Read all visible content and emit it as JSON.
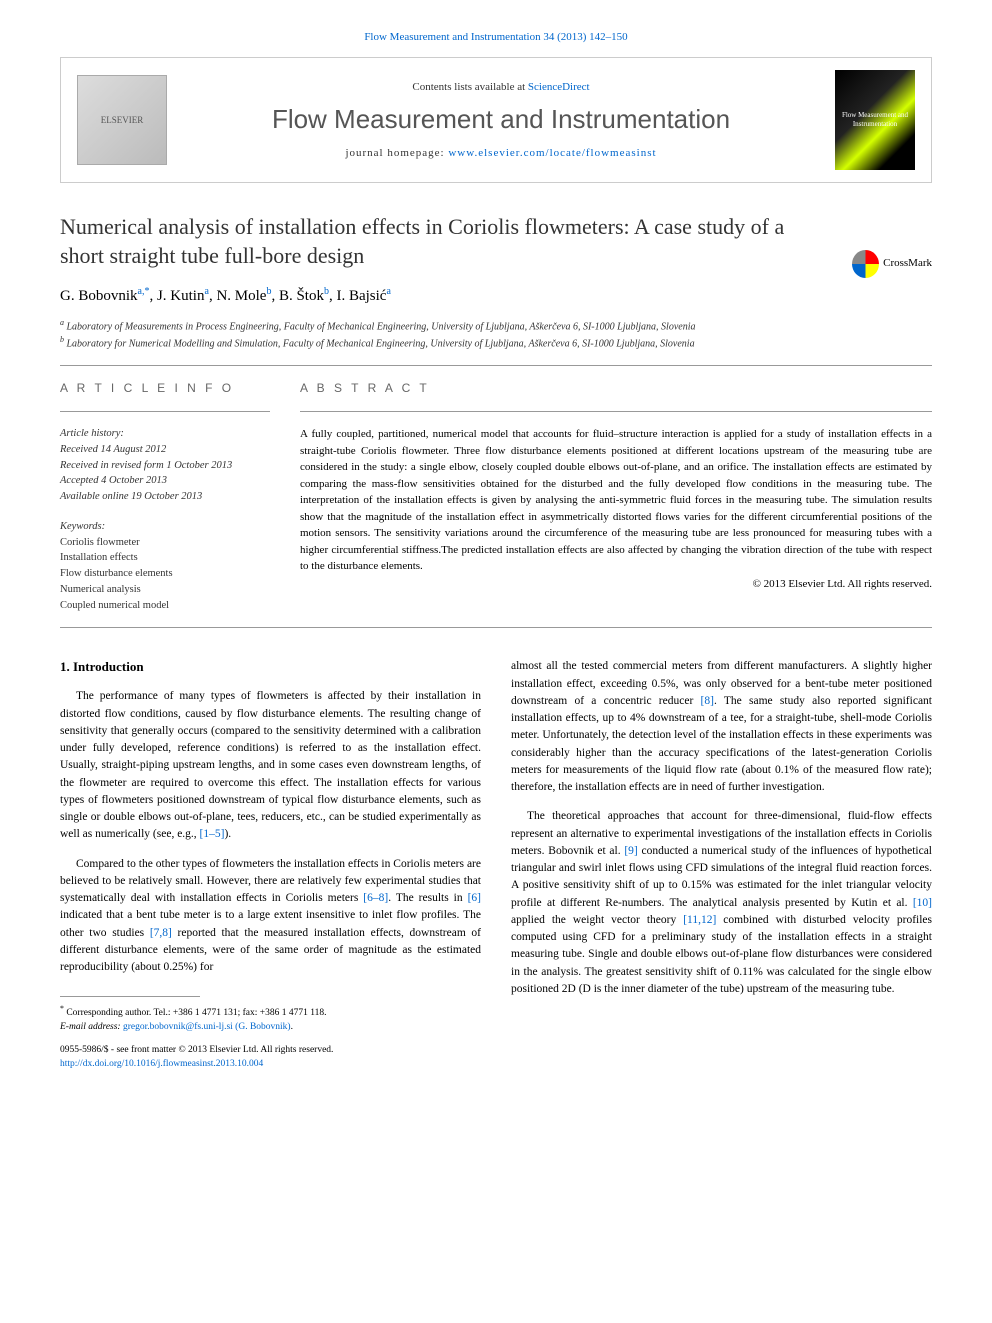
{
  "top_link": {
    "text": "Flow Measurement and Instrumentation 34 (2013) 142–150"
  },
  "header": {
    "contents_prefix": "Contents lists available at ",
    "contents_link": "ScienceDirect",
    "journal_title": "Flow Measurement and Instrumentation",
    "homepage_prefix": "journal homepage: ",
    "homepage_link": "www.elsevier.com/locate/flowmeasinst",
    "elsevier_label": "ELSEVIER",
    "cover_label": "Flow Measurement and Instrumentation"
  },
  "crossmark_label": "CrossMark",
  "title": "Numerical analysis of installation effects in Coriolis flowmeters: A case study of a short straight tube full-bore design",
  "authors_html": "G. Bobovnik",
  "authors": {
    "a1": "G. Bobovnik",
    "a1_sup": "a,",
    "a1_star": "*",
    "a2": ", J. Kutin",
    "a2_sup": "a",
    "a3": ", N. Mole",
    "a3_sup": "b",
    "a4": ", B. Štok",
    "a4_sup": "b",
    "a5": ", I. Bajsić",
    "a5_sup": "a"
  },
  "affiliations": {
    "a": "Laboratory of Measurements in Process Engineering, Faculty of Mechanical Engineering, University of Ljubljana, Aškerčeva 6, SI-1000 Ljubljana, Slovenia",
    "b": "Laboratory for Numerical Modelling and Simulation, Faculty of Mechanical Engineering, University of Ljubljana, Aškerčeva 6, SI-1000 Ljubljana, Slovenia"
  },
  "article_info_label": "A R T I C L E  I N F O",
  "abstract_label": "A B S T R A C T",
  "history": {
    "label": "Article history:",
    "received": "Received 14 August 2012",
    "revised": "Received in revised form 1 October 2013",
    "accepted": "Accepted 4 October 2013",
    "online": "Available online 19 October 2013"
  },
  "keywords": {
    "label": "Keywords:",
    "k1": "Coriolis flowmeter",
    "k2": "Installation effects",
    "k3": "Flow disturbance elements",
    "k4": "Numerical analysis",
    "k5": "Coupled numerical model"
  },
  "abstract": "A fully coupled, partitioned, numerical model that accounts for fluid–structure interaction is applied for a study of installation effects in a straight-tube Coriolis flowmeter. Three flow disturbance elements positioned at different locations upstream of the measuring tube are considered in the study: a single elbow, closely coupled double elbows out-of-plane, and an orifice. The installation effects are estimated by comparing the mass-flow sensitivities obtained for the disturbed and the fully developed flow conditions in the measuring tube. The interpretation of the installation effects is given by analysing the anti-symmetric fluid forces in the measuring tube. The simulation results show that the magnitude of the installation effect in asymmetrically distorted flows varies for the different circumferential positions of the motion sensors. The sensitivity variations around the circumference of the measuring tube are less pronounced for measuring tubes with a higher circumferential stiffness.The predicted installation effects are also affected by changing the vibration direction of the tube with respect to the disturbance elements.",
  "copyright": "© 2013 Elsevier Ltd. All rights reserved.",
  "intro_heading": "1.  Introduction",
  "body": {
    "p1": "The performance of many types of flowmeters is affected by their installation in distorted flow conditions, caused by flow disturbance elements. The resulting change of sensitivity that generally occurs (compared to the sensitivity determined with a calibration under fully developed, reference conditions) is referred to as the installation effect. Usually, straight-piping upstream lengths, and in some cases even downstream lengths, of the flowmeter are required to overcome this effect. The installation effects for various types of flowmeters positioned downstream of typical flow disturbance elements, such as single or double elbows out-of-plane, tees, reducers, etc., can be studied experimentally as well as numerically (see, e.g., ",
    "p1_ref1": "[1–5]",
    "p1_end": ").",
    "p2a": "Compared to the other types of flowmeters the installation effects in Coriolis meters are believed to be relatively small. However, there are relatively few experimental studies that systematically deal with installation effects in Coriolis meters ",
    "p2_ref68": "[6–8]",
    "p2b": ". The results in ",
    "p2_ref6": "[6]",
    "p2c": " indicated that a bent tube meter is to a large extent insensitive to inlet flow profiles. The other two studies ",
    "p2_ref78": "[7,8]",
    "p2d": " reported that the measured installation effects, downstream of different disturbance elements, were of the same order of magnitude as the estimated reproducibility (about 0.25%) for",
    "p3a": "almost all the tested commercial meters from different manufacturers. A slightly higher installation effect, exceeding 0.5%, was only observed for a bent-tube meter positioned downstream of a concentric reducer ",
    "p3_ref8": "[8]",
    "p3b": ". The same study also reported significant installation effects, up to 4% downstream of a tee, for a straight-tube, shell-mode Coriolis meter. Unfortunately, the detection level of the installation effects in these experiments was considerably higher than the accuracy specifications of the latest-generation Coriolis meters for measurements of the liquid flow rate (about 0.1% of the measured flow rate); therefore, the installation effects are in need of further investigation.",
    "p4a": "The theoretical approaches that account for three-dimensional, fluid-flow effects represent an alternative to experimental investigations of the installation effects in Coriolis meters. Bobovnik et al. ",
    "p4_ref9": "[9]",
    "p4b": " conducted a numerical study of the influences of hypothetical triangular and swirl inlet flows using CFD simulations of the integral fluid reaction forces. A positive sensitivity shift of up to 0.15% was estimated for the inlet triangular velocity profile at different Re-numbers. The analytical analysis presented by Kutin et al. ",
    "p4_ref10": "[10]",
    "p4c": " applied the weight vector theory ",
    "p4_ref1112": "[11,12]",
    "p4d": " combined with disturbed velocity profiles computed using CFD for a preliminary study of the installation effects in a straight measuring tube. Single and double elbows out-of-plane flow disturbances were considered in the analysis. The greatest sensitivity shift of 0.11% was calculated for the single elbow positioned 2D (D is the inner diameter of the tube) upstream of the measuring tube."
  },
  "footnote": {
    "star": "*",
    "text": " Corresponding author. Tel.: +386 1 4771 131; fax: +386 1 4771 118.",
    "email_label": "E-mail address: ",
    "email": "gregor.bobovnik@fs.uni-lj.si (G. Bobovnik)",
    "email_suffix": "."
  },
  "footer": {
    "line1": "0955-5986/$ - see front matter © 2013 Elsevier Ltd. All rights reserved.",
    "doi": "http://dx.doi.org/10.1016/j.flowmeasinst.2013.10.004"
  }
}
